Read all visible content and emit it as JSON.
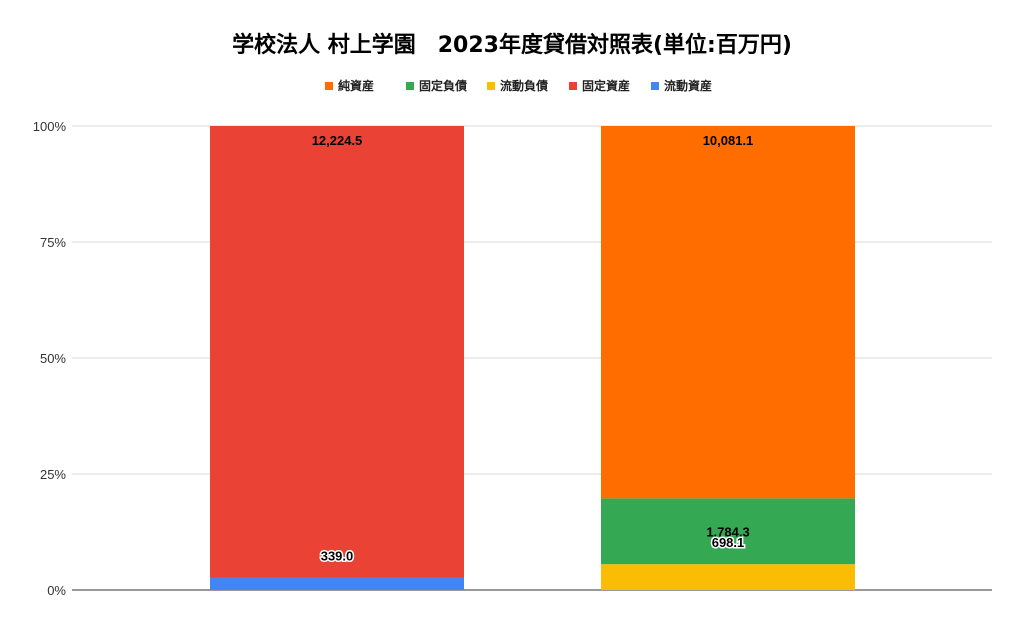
{
  "chart_data": {
    "type": "bar",
    "stacking": "percent",
    "title": "学校法人 村上学園　2023年度貸借対照表(単位:百万円)",
    "legend_position": "top",
    "y_ticks": [
      "0%",
      "25%",
      "50%",
      "75%",
      "100%"
    ],
    "ylim": [
      0,
      100
    ],
    "grid": true,
    "categories": [
      "",
      ""
    ],
    "series": [
      {
        "name": "純資産",
        "color": "#ff6d01",
        "values": [
          null,
          10081.1
        ]
      },
      {
        "name": "固定負債",
        "color": "#34a853",
        "values": [
          null,
          1784.3
        ]
      },
      {
        "name": "流動負債",
        "color": "#fbbc04",
        "values": [
          null,
          698.1
        ]
      },
      {
        "name": "固定資産",
        "color": "#ea4335",
        "values": [
          12224.5,
          null
        ]
      },
      {
        "name": "流動資産",
        "color": "#4285f4",
        "values": [
          339.0,
          null
        ]
      }
    ],
    "stack_order_bottom_to_top": [
      "流動資産",
      "固定資産",
      "流動負債",
      "固定負債",
      "純資産"
    ],
    "labels": [
      {
        "series": "純資産",
        "bar": 1,
        "text": "10,081.1"
      },
      {
        "series": "固定負債",
        "bar": 1,
        "text": "1,784.3"
      },
      {
        "series": "流動負債",
        "bar": 1,
        "text": "698.1"
      },
      {
        "series": "固定資産",
        "bar": 0,
        "text": "12,224.5"
      },
      {
        "series": "流動資産",
        "bar": 0,
        "text": "339.0"
      }
    ]
  }
}
